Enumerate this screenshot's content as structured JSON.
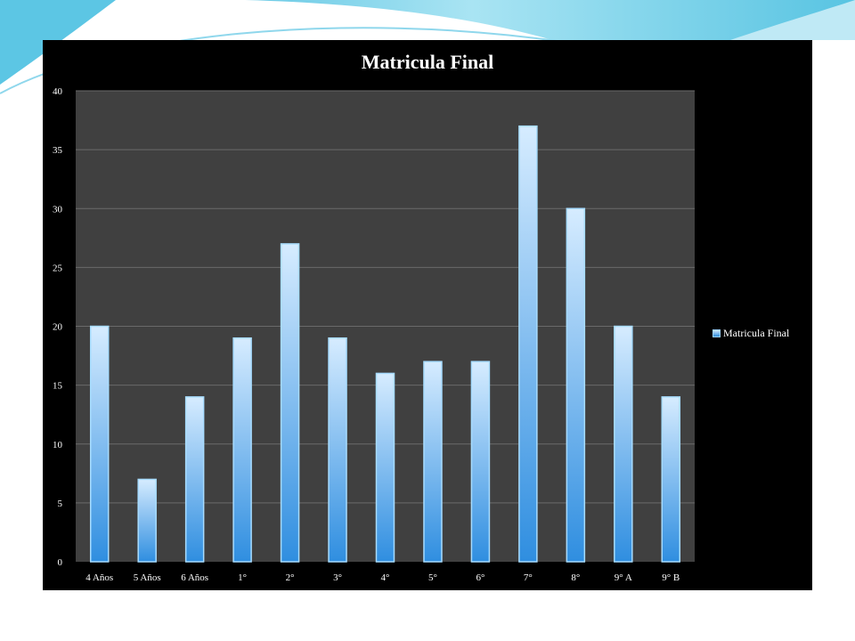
{
  "colors": {
    "chart_background": "#000000",
    "plot_background": "#404040",
    "gridline": "#6a6a6a",
    "bar_top": "#d6ecff",
    "bar_bottom": "#2f8ee0",
    "bar_edge": "#a7dcff",
    "text": "#ffffff",
    "slide_accent": "#6ec8e6"
  },
  "chart_data": {
    "type": "bar",
    "title": "Matricula Final",
    "xlabel": "",
    "ylabel": "",
    "ylim": [
      0,
      40
    ],
    "yticks": [
      0,
      5,
      10,
      15,
      20,
      25,
      30,
      35,
      40
    ],
    "grid": true,
    "legend": "right",
    "categories": [
      "4 Años",
      "5 Años",
      "6 Años",
      "1°",
      "2°",
      "3°",
      "4°",
      "5°",
      "6°",
      "7°",
      "8°",
      "9° A",
      "9° B"
    ],
    "series": [
      {
        "name": "Matricula Final",
        "values": [
          20,
          7,
          14,
          19,
          27,
          19,
          16,
          17,
          17,
          37,
          30,
          20,
          14
        ]
      }
    ]
  }
}
